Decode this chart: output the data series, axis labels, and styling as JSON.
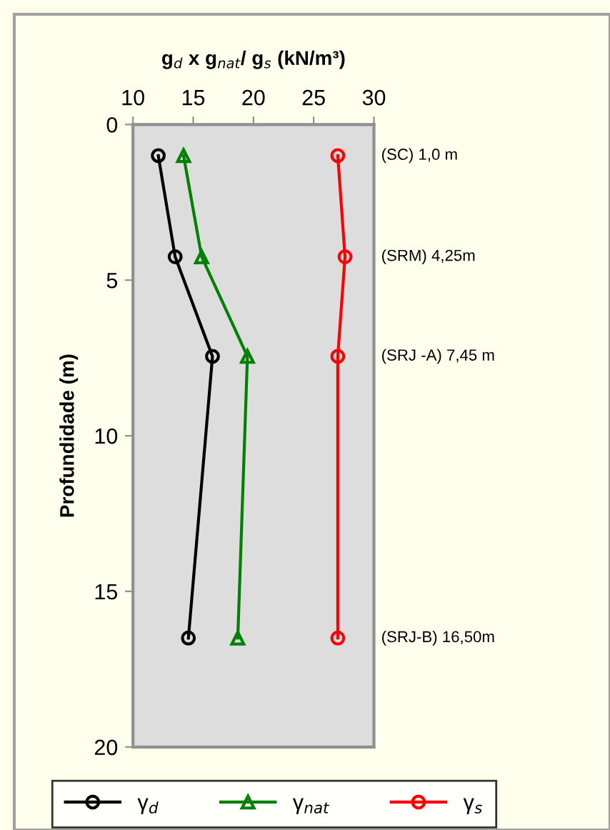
{
  "chart_data": {
    "type": "line",
    "title": "g$_{d}$ x g$_{nat}$/ g$_{s}$ (kN/m³)",
    "ylabel": "Profundidade (m)",
    "xlim": [
      10,
      30
    ],
    "xticks": [
      10,
      15,
      20,
      25,
      30
    ],
    "ylim": [
      20,
      0
    ],
    "yticks": [
      0,
      5,
      10,
      15,
      20
    ],
    "grid": false,
    "legend": "bottom",
    "line_style": "solid",
    "series": [
      {
        "name": "γ$_{d}$",
        "color": "#000000",
        "marker": "circle",
        "x": [
          12.1,
          13.5,
          16.6,
          14.6
        ],
        "values": [
          1.0,
          4.25,
          7.45,
          16.5
        ]
      },
      {
        "name": "γ$_{nat}$",
        "color": "#008000",
        "marker": "triangle",
        "x": [
          14.2,
          15.7,
          19.5,
          18.7
        ],
        "values": [
          1.0,
          4.25,
          7.45,
          16.5
        ]
      },
      {
        "name": "γ$_{s}$",
        "color": "#ff0000",
        "marker": "circle",
        "x": [
          27.0,
          27.6,
          27.0,
          27.0
        ],
        "values": [
          1.0,
          4.25,
          7.45,
          16.5
        ]
      }
    ],
    "annotations": [
      "(SC) 1,0 m",
      "(SRM) 4,25m",
      "(SRJ -A) 7,45 m",
      "(SRJ-B) 16,50m"
    ]
  }
}
